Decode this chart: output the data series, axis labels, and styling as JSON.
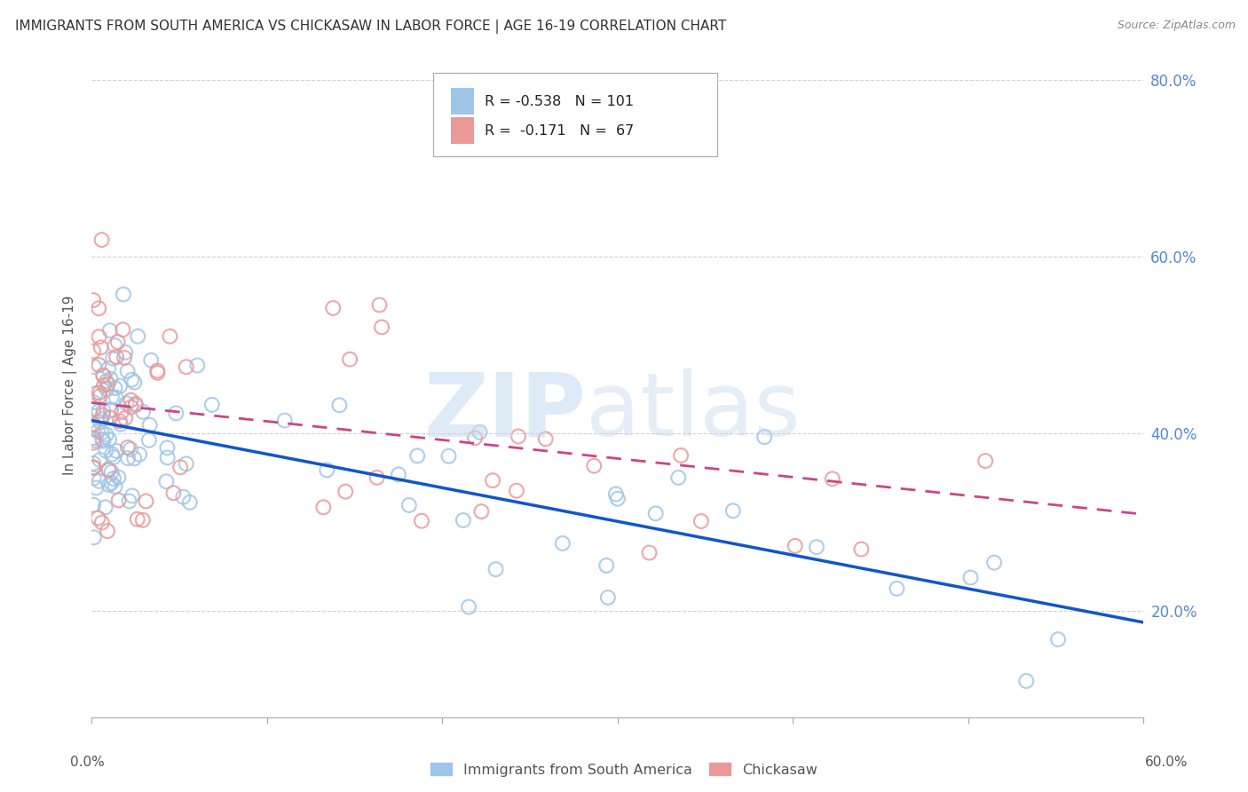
{
  "title": "IMMIGRANTS FROM SOUTH AMERICA VS CHICKASAW IN LABOR FORCE | AGE 16-19 CORRELATION CHART",
  "source": "Source: ZipAtlas.com",
  "ylabel": "In Labor Force | Age 16-19",
  "xlabel_legend1": "Immigrants from South America",
  "xlabel_legend2": "Chickasaw",
  "legend1_R": "-0.538",
  "legend1_N": "101",
  "legend2_R": "-0.171",
  "legend2_N": "67",
  "xlim": [
    0.0,
    0.6
  ],
  "ylim": [
    0.08,
    0.83
  ],
  "xticks_major": [
    0.0,
    0.1,
    0.2,
    0.3,
    0.4,
    0.5,
    0.6
  ],
  "yticks": [
    0.2,
    0.4,
    0.6,
    0.8
  ],
  "ytick_right_labels": [
    "20.0%",
    "40.0%",
    "60.0%",
    "80.0%"
  ],
  "color_blue": "#9fc5e8",
  "color_pink": "#ea9999",
  "color_line_blue": "#1155cc",
  "color_line_pink": "#cc4488",
  "watermark_zip": "ZIP",
  "watermark_atlas": "atlas",
  "blue_intercept": 0.415,
  "blue_slope": -0.38,
  "pink_intercept": 0.435,
  "pink_slope": -0.21
}
